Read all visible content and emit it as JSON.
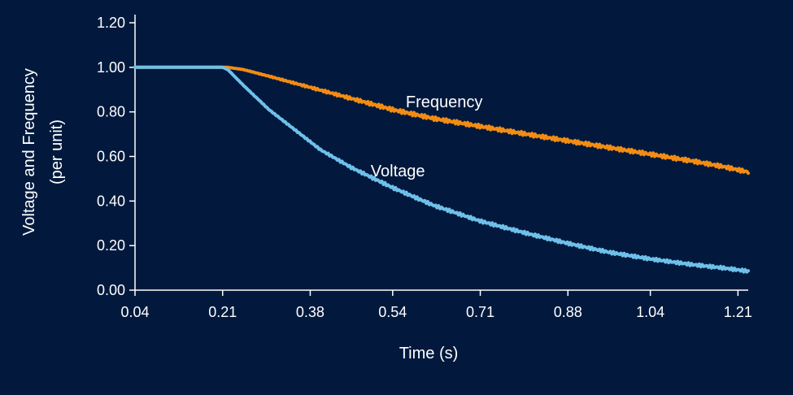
{
  "colors": {
    "background": "#02193d",
    "text": "#ffffff",
    "frequency": "#f28c13",
    "voltage": "#6ec0ea"
  },
  "chart_data": {
    "type": "line",
    "title": "",
    "xlabel": "Time (s)",
    "ylabel_line1": "Voltage and Frequency",
    "ylabel_line2": "(per unit)",
    "xlim": [
      0.04,
      1.23
    ],
    "ylim": [
      0.0,
      1.2
    ],
    "x_ticks": [
      "0.04",
      "0.21",
      "0.38",
      "0.54",
      "0.71",
      "0.88",
      "1.04",
      "1.21"
    ],
    "y_ticks": [
      "0.00",
      "0.20",
      "0.40",
      "0.60",
      "0.80",
      "1.00",
      "1.20"
    ],
    "grid": false,
    "legend": "inline labels",
    "series": [
      {
        "name": "Frequency",
        "color": "#f28c13",
        "x": [
          0.04,
          0.22,
          0.25,
          0.3,
          0.38,
          0.46,
          0.54,
          0.62,
          0.71,
          0.8,
          0.88,
          0.96,
          1.04,
          1.12,
          1.18,
          1.23
        ],
        "y": [
          1.0,
          1.0,
          0.99,
          0.96,
          0.91,
          0.86,
          0.81,
          0.77,
          0.735,
          0.7,
          0.67,
          0.64,
          0.61,
          0.58,
          0.555,
          0.53
        ]
      },
      {
        "name": "Voltage",
        "color": "#6ec0ea",
        "x": [
          0.04,
          0.21,
          0.22,
          0.25,
          0.3,
          0.35,
          0.4,
          0.46,
          0.54,
          0.62,
          0.71,
          0.8,
          0.88,
          0.96,
          1.04,
          1.12,
          1.18,
          1.23
        ],
        "y": [
          1.0,
          1.0,
          0.99,
          0.92,
          0.81,
          0.72,
          0.63,
          0.55,
          0.46,
          0.38,
          0.31,
          0.255,
          0.21,
          0.17,
          0.14,
          0.115,
          0.1,
          0.085
        ]
      }
    ],
    "annotations": [
      {
        "text": "Frequency",
        "x": 0.64,
        "y": 0.82
      },
      {
        "text": "Voltage",
        "x": 0.55,
        "y": 0.51
      }
    ]
  }
}
